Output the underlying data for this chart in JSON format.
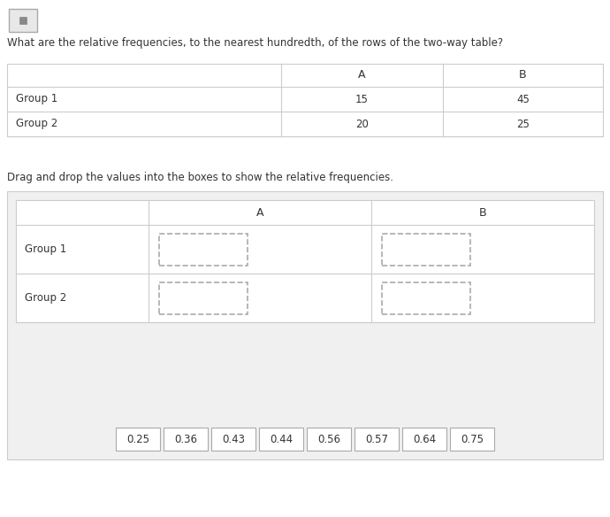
{
  "question_text": "What are the relative frequencies, to the nearest hundredth, of the rows of the two-way table?",
  "drag_drop_text": "Drag and drop the values into the boxes to show the relative frequencies.",
  "top_table": {
    "rows": [
      [
        "Group 1",
        "15",
        "45"
      ],
      [
        "Group 2",
        "20",
        "25"
      ]
    ]
  },
  "bottom_table": {
    "rows": [
      "Group 1",
      "Group 2"
    ]
  },
  "answer_boxes": [
    "0.25",
    "0.36",
    "0.43",
    "0.44",
    "0.56",
    "0.57",
    "0.64",
    "0.75"
  ],
  "bg_color": "#ffffff",
  "border_color": "#cccccc",
  "text_color": "#333333",
  "dashed_box_color": "#aaaaaa",
  "answer_box_bg": "#ffffff",
  "answer_box_border": "#aaaaaa",
  "panel_bg": "#f0f0f0",
  "icon_bg": "#e8e8e8",
  "icon_border": "#aaaaaa"
}
